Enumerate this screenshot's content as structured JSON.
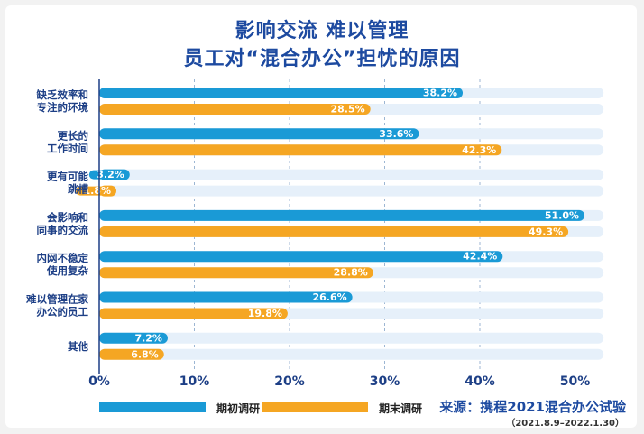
{
  "title_line1": "影响交流  难以管理",
  "title_line2": "员工对“混合办公”担忧的原因",
  "chart_data": {
    "type": "bar",
    "orientation": "horizontal",
    "categories": [
      [
        "缺乏效率和",
        "专注的环境"
      ],
      [
        "更长的",
        "工作时间"
      ],
      [
        "更有可能",
        "跳槽"
      ],
      [
        "会影响和",
        "同事的交流"
      ],
      [
        "内网不稳定",
        "使用复杂"
      ],
      [
        "难以管理在家",
        "办公的员工"
      ],
      [
        "其他"
      ]
    ],
    "series": [
      {
        "name": "期初调研",
        "color": "#1a9ad6",
        "values": [
          38.2,
          33.6,
          3.2,
          51.0,
          42.4,
          26.6,
          7.2
        ],
        "labels": [
          "38.2%",
          "33.6%",
          "3.2%",
          "51.0%",
          "42.4%",
          "26.6%",
          "7.2%"
        ]
      },
      {
        "name": "期末调研",
        "color": "#f5a623",
        "values": [
          28.5,
          42.3,
          1.8,
          49.3,
          28.8,
          19.8,
          6.8
        ],
        "labels": [
          "28.5%",
          "42.3%",
          "1.8%",
          "49.3%",
          "28.8%",
          "19.8%",
          "6.8%"
        ]
      }
    ],
    "xlim": [
      0,
      53
    ],
    "xticks": [
      0,
      10,
      20,
      30,
      40,
      50
    ],
    "xtick_labels": [
      "0%",
      "10%",
      "20%",
      "30%",
      "40%",
      "50%"
    ],
    "grid": true,
    "legend_position": "bottom-left",
    "track_color": "#e6f0fa",
    "track_end": 53
  },
  "source": "来源：携程2021混合办公试验",
  "source_range": "（2021.8.9–2022.1.30）"
}
